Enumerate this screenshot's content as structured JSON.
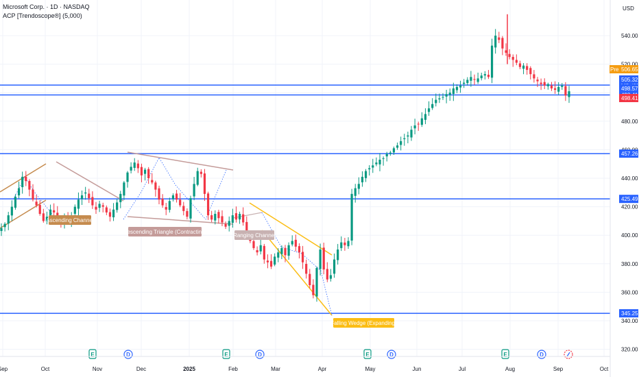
{
  "header": {
    "title": "Microsoft Corp. · 1D · NASDAQ",
    "indicator": "ACP [Trendoscope®] (5,000)"
  },
  "chart_data": {
    "type": "candlestick",
    "currency": "USD",
    "ylim": [
      315,
      565
    ],
    "y_ticks": [
      320,
      340,
      360,
      380,
      400,
      420,
      440,
      460,
      480,
      500,
      520,
      540
    ],
    "x_ticks": [
      "Sep",
      "Oct",
      "Nov",
      "Dec",
      "2025",
      "Feb",
      "Mar",
      "Apr",
      "May",
      "Jun",
      "Jul",
      "Aug",
      "Sep",
      "Oct"
    ],
    "horizontal_levels": [
      505.32,
      498.41,
      457.26,
      425.49,
      345.25
    ],
    "price_tags": [
      {
        "label": "Pre",
        "value": "506.65",
        "color": "#f59d12"
      },
      {
        "value": "505.32",
        "color": "#2962ff"
      },
      {
        "value": "498.57",
        "color": "#2962ff"
      },
      {
        "value": "498.41",
        "color": "#f23645"
      }
    ],
    "patterns": [
      {
        "name": "Ascending Channel",
        "color": "#c58b4e"
      },
      {
        "name": "Descending Triangle (Contracting)",
        "color": "#c49b99"
      },
      {
        "name": "Ranging Channel",
        "color": "#c8b2b2"
      },
      {
        "name": "Falling Wedge (Expanding)",
        "color": "#fbbd14"
      }
    ],
    "events": [
      {
        "type": "E",
        "month": "Oct"
      },
      {
        "type": "D",
        "month": "Nov"
      },
      {
        "type": "E",
        "month": "Jan"
      },
      {
        "type": "D",
        "month": "Feb"
      },
      {
        "type": "E",
        "month": "Apr"
      },
      {
        "type": "D",
        "month": "May"
      },
      {
        "type": "E",
        "month": "Jul"
      },
      {
        "type": "D",
        "month": "Aug"
      },
      {
        "type": "S",
        "month": "Sep"
      }
    ],
    "series": {
      "close_path": [
        405,
        408,
        414,
        420,
        427,
        433,
        441,
        438,
        432,
        425,
        421,
        415,
        410,
        413,
        418,
        416,
        412,
        408,
        411,
        409,
        414,
        420,
        425,
        428,
        430,
        426,
        421,
        418,
        422,
        420,
        416,
        413,
        418,
        423,
        429,
        437,
        444,
        448,
        451,
        447,
        442,
        446,
        440,
        437,
        432,
        425,
        421,
        418,
        424,
        428,
        425,
        421,
        417,
        413,
        426,
        436,
        445,
        443,
        429,
        414,
        411,
        415,
        412,
        409,
        406,
        410,
        414,
        411,
        415,
        409,
        402,
        396,
        391,
        388,
        393,
        383,
        381,
        378,
        385,
        388,
        391,
        386,
        393,
        396,
        392,
        388,
        381,
        373,
        365,
        358,
        377,
        390,
        376,
        369,
        372,
        383,
        390,
        395,
        393,
        396,
        429,
        433,
        436,
        441,
        445,
        447,
        449,
        451,
        453,
        454,
        457,
        458,
        461,
        463,
        466,
        468,
        470,
        474,
        477,
        478,
        482,
        485,
        489,
        492,
        495,
        496,
        497,
        499,
        500,
        503,
        504,
        505,
        507,
        509,
        511,
        509,
        510,
        512,
        513,
        511,
        533,
        540,
        537,
        531,
        528,
        525,
        523,
        521,
        518,
        519,
        516,
        513,
        510,
        508,
        506,
        505,
        506,
        503,
        502,
        504,
        505,
        498,
        501
      ]
    }
  }
}
